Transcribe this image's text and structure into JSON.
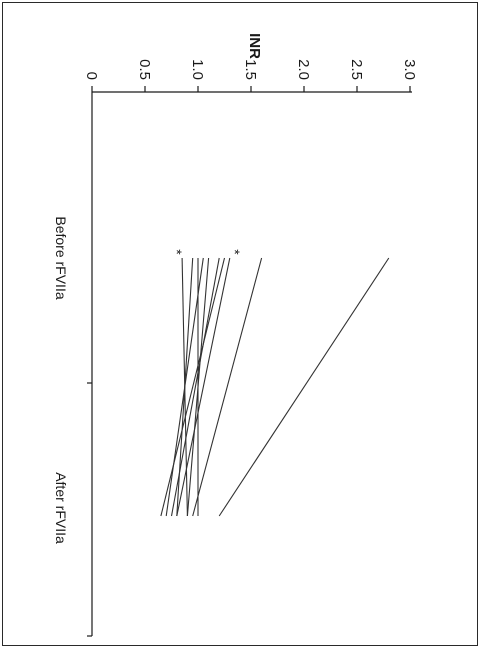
{
  "chart_data": {
    "type": "line",
    "orientation": "rotated-90-clockwise",
    "title": "",
    "ylabel": "INR",
    "xlabel": "",
    "categories": [
      "Before rFVIIa",
      "After rFVIIa"
    ],
    "y_ticks": [
      "0",
      "0.5",
      "1.0",
      "1.5",
      "2.0",
      "2.5",
      "3.0"
    ],
    "y_tick_values": [
      0,
      0.5,
      1.0,
      1.5,
      2.0,
      2.5,
      3.0
    ],
    "ylim": [
      0,
      3.0
    ],
    "grid": false,
    "legend": "none",
    "line_color": "#333333",
    "series": [
      {
        "values": [
          2.8,
          1.2
        ]
      },
      {
        "values": [
          1.6,
          0.95
        ]
      },
      {
        "values": [
          1.3,
          0.8
        ]
      },
      {
        "values": [
          1.25,
          0.65
        ]
      },
      {
        "values": [
          1.2,
          0.75
        ]
      },
      {
        "values": [
          1.1,
          0.9
        ]
      },
      {
        "values": [
          1.05,
          0.7
        ]
      },
      {
        "values": [
          1.0,
          1.0
        ]
      },
      {
        "values": [
          0.95,
          0.8
        ]
      },
      {
        "values": [
          0.85,
          0.9
        ]
      }
    ],
    "annotations": [
      {
        "text": "*",
        "x": "Before rFVIIa",
        "y": 1.35
      },
      {
        "text": "*",
        "x": "Before rFVIIa",
        "y": 0.8
      }
    ]
  }
}
